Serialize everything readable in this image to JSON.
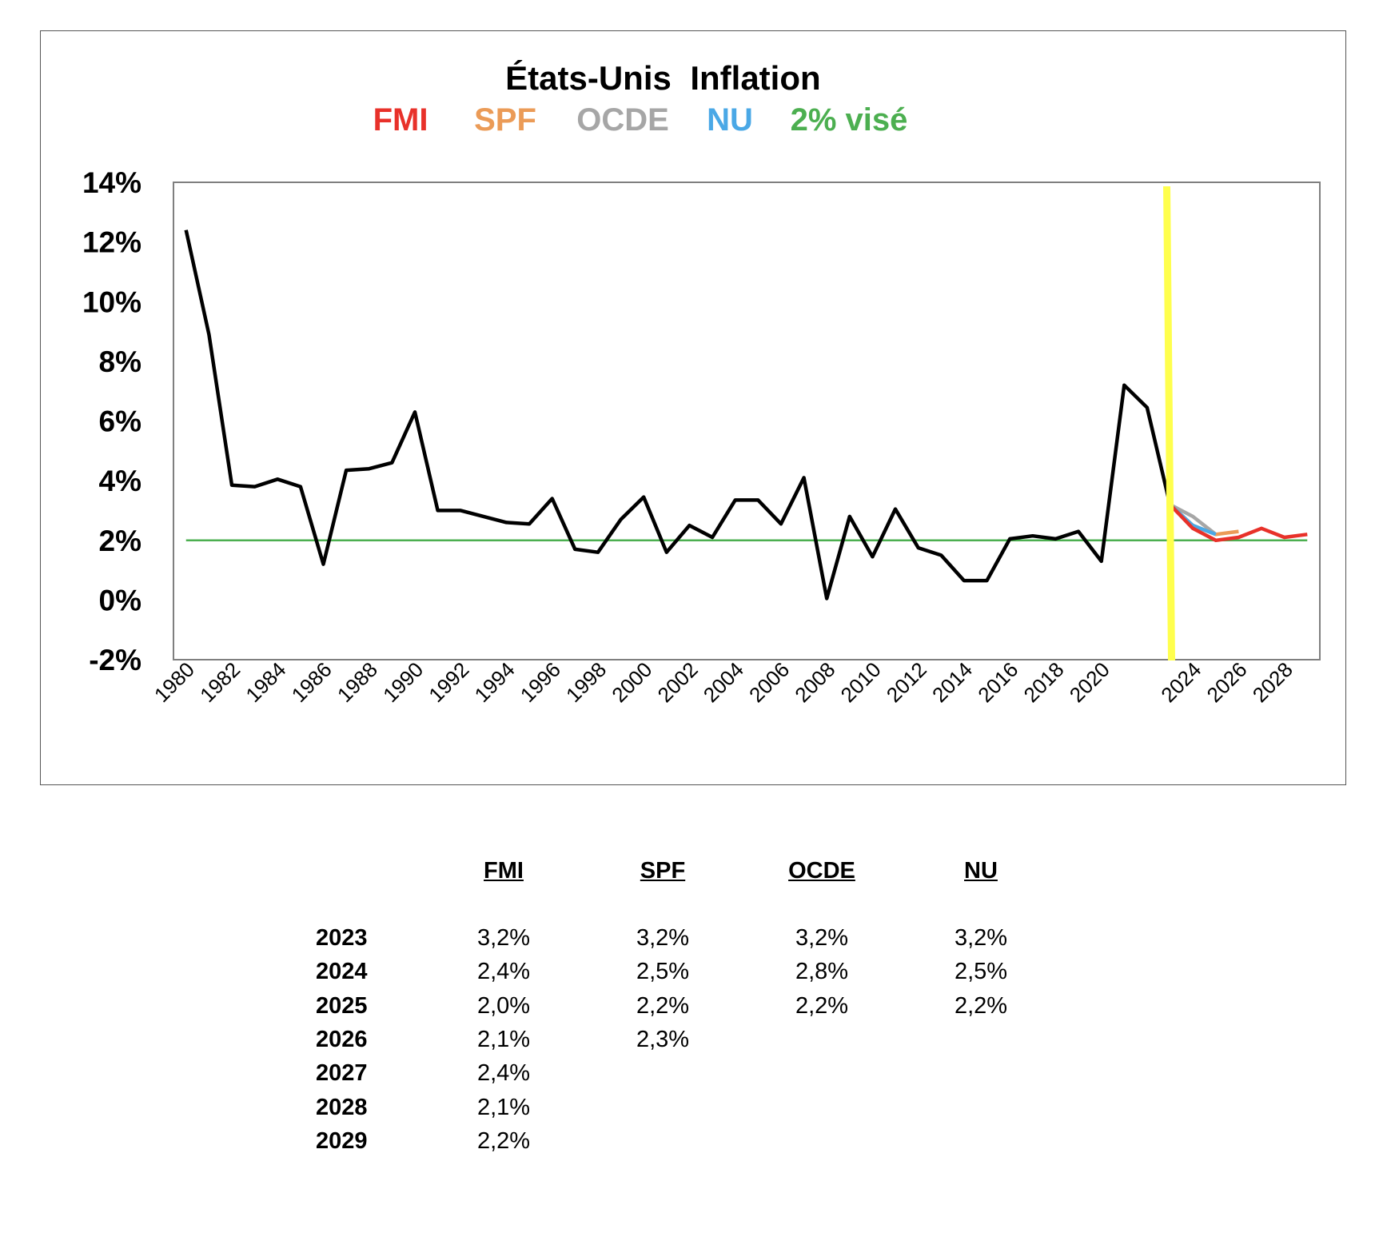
{
  "chart_data": {
    "type": "line",
    "title": "États-Unis",
    "title_right": "Inflation",
    "legend": [
      {
        "label": "FMI",
        "color": "#e8312a"
      },
      {
        "label": "SPF",
        "color": "#eb9b57"
      },
      {
        "label": "OCDE",
        "color": "#a6a6a6"
      },
      {
        "label": "NU",
        "color": "#4aa8e6"
      },
      {
        "label": "2% visé",
        "color": "#4caf50"
      }
    ],
    "ylim": [
      -2,
      14
    ],
    "yticks": [
      "14%",
      "12%",
      "10%",
      "8%",
      "6%",
      "4%",
      "2%",
      "0%",
      "-2%"
    ],
    "xticks": [
      "1980",
      "1982",
      "1984",
      "1986",
      "1988",
      "1990",
      "1992",
      "1994",
      "1996",
      "1998",
      "2000",
      "2002",
      "2004",
      "2006",
      "2008",
      "2010",
      "2012",
      "2014",
      "2016",
      "2018",
      "2020",
      "2024",
      "2026",
      "2028"
    ],
    "x": [
      1980,
      1981,
      1982,
      1983,
      1984,
      1985,
      1986,
      1987,
      1988,
      1989,
      1990,
      1991,
      1992,
      1993,
      1994,
      1995,
      1996,
      1997,
      1998,
      1999,
      2000,
      2001,
      2002,
      2003,
      2004,
      2005,
      2006,
      2007,
      2008,
      2009,
      2010,
      2011,
      2012,
      2013,
      2014,
      2015,
      2016,
      2017,
      2018,
      2019,
      2020,
      2021,
      2022,
      2023
    ],
    "series": [
      {
        "color": "#000000",
        "values": [
          12.4,
          8.9,
          3.85,
          3.8,
          4.05,
          3.8,
          1.2,
          4.35,
          4.4,
          4.6,
          6.3,
          3.0,
          3.0,
          2.8,
          2.6,
          2.55,
          3.4,
          1.7,
          1.6,
          2.7,
          3.45,
          1.6,
          2.5,
          2.1,
          3.35,
          3.35,
          2.55,
          4.1,
          0.05,
          2.8,
          1.45,
          3.05,
          1.75,
          1.5,
          0.65,
          0.65,
          2.05,
          2.15,
          2.05,
          2.3,
          1.3,
          7.2,
          6.45,
          3.2
        ]
      },
      {
        "name": "FMI",
        "color": "#e8312a",
        "x": [
          2023,
          2024,
          2025,
          2026,
          2027,
          2028,
          2029
        ],
        "values": [
          3.2,
          2.4,
          2.0,
          2.1,
          2.4,
          2.1,
          2.2
        ]
      },
      {
        "name": "SPF",
        "color": "#eb9b57",
        "x": [
          2023,
          2024,
          2025,
          2026
        ],
        "values": [
          3.2,
          2.5,
          2.2,
          2.3
        ]
      },
      {
        "name": "OCDE",
        "color": "#a6a6a6",
        "x": [
          2023,
          2024,
          2025
        ],
        "values": [
          3.2,
          2.8,
          2.2
        ]
      },
      {
        "name": "NU",
        "color": "#4aa8e6",
        "x": [
          2023,
          2024,
          2025
        ],
        "values": [
          3.2,
          2.5,
          2.2
        ]
      }
    ],
    "target_line": {
      "value": 2.0,
      "color": "#4caf50"
    },
    "highlight_line": {
      "x": 2023,
      "color": "#ffff4d"
    },
    "grid": false
  },
  "table": {
    "headers": [
      "FMI",
      "SPF",
      "OCDE",
      "NU"
    ],
    "rows": [
      {
        "year": "2023",
        "values": [
          "3,2%",
          "3,2%",
          "3,2%",
          "3,2%"
        ]
      },
      {
        "year": "2024",
        "values": [
          "2,4%",
          "2,5%",
          "2,8%",
          "2,5%"
        ]
      },
      {
        "year": "2025",
        "values": [
          "2,0%",
          "2,2%",
          "2,2%",
          "2,2%"
        ]
      },
      {
        "year": "2026",
        "values": [
          "2,1%",
          "2,3%",
          "",
          ""
        ]
      },
      {
        "year": "2027",
        "values": [
          "2,4%",
          "",
          "",
          ""
        ]
      },
      {
        "year": "2028",
        "values": [
          "2,1%",
          "",
          "",
          ""
        ]
      },
      {
        "year": "2029",
        "values": [
          "2,2%",
          "",
          "",
          ""
        ]
      }
    ]
  }
}
